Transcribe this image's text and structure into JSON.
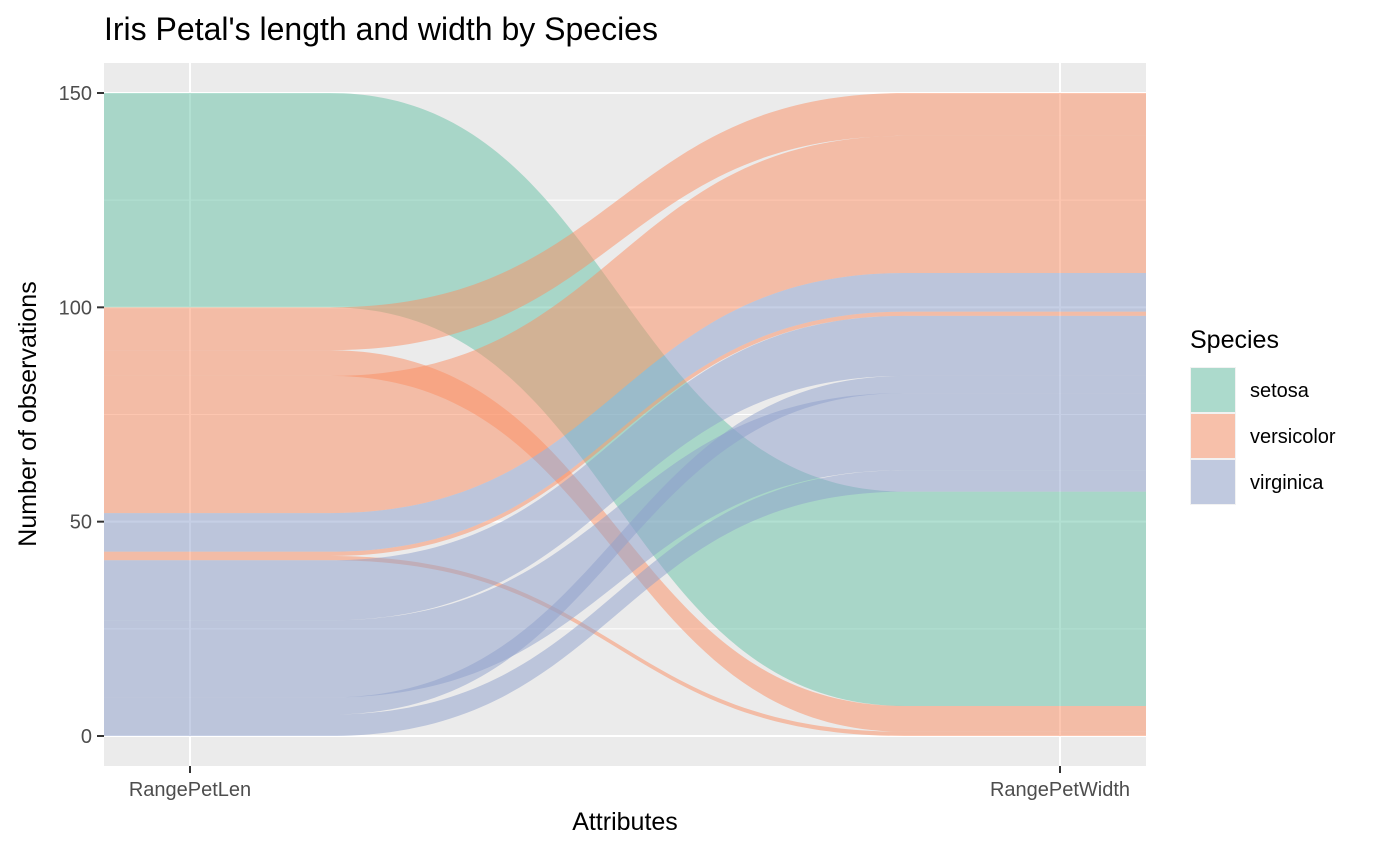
{
  "chart_data": {
    "type": "alluvial",
    "title": "Iris Petal's length and width by Species",
    "xlabel": "Attributes",
    "ylabel": "Number of observations",
    "axes": [
      "RangePetLen",
      "RangePetWidth"
    ],
    "ylim": [
      -7,
      157
    ],
    "yticks": [
      0,
      50,
      100,
      150
    ],
    "grid": true,
    "legend": {
      "title": "Species",
      "position": "right",
      "entries": [
        {
          "name": "setosa",
          "color": "#66c2a5"
        },
        {
          "name": "versicolor",
          "color": "#fc8d62"
        },
        {
          "name": "virginica",
          "color": "#8da0cb"
        }
      ]
    },
    "flows": [
      {
        "species": "setosa",
        "left": [
          100,
          150
        ],
        "right": [
          7,
          57
        ]
      },
      {
        "species": "versicolor",
        "left": [
          90,
          100
        ],
        "right": [
          140,
          150
        ]
      },
      {
        "species": "versicolor",
        "left": [
          84,
          90
        ],
        "right": [
          1,
          7
        ]
      },
      {
        "species": "versicolor",
        "left": [
          52,
          84
        ],
        "right": [
          108,
          140
        ]
      },
      {
        "species": "versicolor",
        "left": [
          42,
          43
        ],
        "right": [
          98,
          99
        ]
      },
      {
        "species": "versicolor",
        "left": [
          41,
          42
        ],
        "right": [
          0,
          1
        ]
      },
      {
        "species": "virginica",
        "left": [
          43,
          52
        ],
        "right": [
          99,
          108
        ]
      },
      {
        "species": "virginica",
        "left": [
          27,
          41
        ],
        "right": [
          84,
          98
        ]
      },
      {
        "species": "virginica",
        "left": [
          9,
          27
        ],
        "right": [
          62,
          80
        ]
      },
      {
        "species": "virginica",
        "left": [
          5,
          9
        ],
        "right": [
          80,
          84
        ]
      },
      {
        "species": "virginica",
        "left": [
          0,
          5
        ],
        "right": [
          57,
          62
        ]
      }
    ]
  }
}
